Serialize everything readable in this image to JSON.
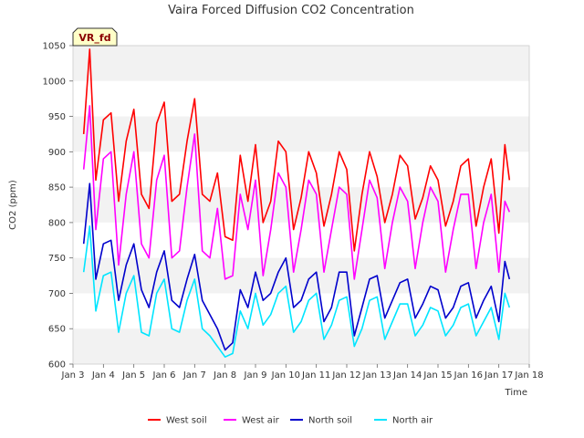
{
  "chart_data": {
    "type": "line",
    "title": "Vaira Forced Diffusion CO2 Concentration",
    "xlabel": "Time",
    "ylabel": "CO2 (ppm)",
    "badge": "VR_fd",
    "xlim": [
      3,
      18
    ],
    "ylim": [
      600,
      1050
    ],
    "x_ticks": [
      {
        "v": 3,
        "label": "Jan 3"
      },
      {
        "v": 4,
        "label": "Jan 4"
      },
      {
        "v": 5,
        "label": "Jan 5"
      },
      {
        "v": 6,
        "label": "Jan 6"
      },
      {
        "v": 7,
        "label": "Jan 7"
      },
      {
        "v": 8,
        "label": "Jan 8"
      },
      {
        "v": 9,
        "label": "Jan 9"
      },
      {
        "v": 10,
        "label": "Jan 10"
      },
      {
        "v": 11,
        "label": "Jan 11"
      },
      {
        "v": 12,
        "label": "Jan 12"
      },
      {
        "v": 13,
        "label": "Jan 13"
      },
      {
        "v": 14,
        "label": "Jan 14"
      },
      {
        "v": 15,
        "label": "Jan 15"
      },
      {
        "v": 16,
        "label": "Jan 16"
      },
      {
        "v": 17,
        "label": "Jan 17"
      },
      {
        "v": 18,
        "label": "Jan 18"
      }
    ],
    "y_ticks": [
      600,
      650,
      700,
      750,
      800,
      850,
      900,
      950,
      1000,
      1050
    ],
    "grid": "horizontal bands",
    "legend": "bottom",
    "series": [
      {
        "name": "West soil",
        "color": "#ff0000",
        "x": [
          3.35,
          3.55,
          3.75,
          4.0,
          4.25,
          4.5,
          4.75,
          5.0,
          5.25,
          5.5,
          5.75,
          6.0,
          6.25,
          6.5,
          6.75,
          7.0,
          7.25,
          7.5,
          7.75,
          8.0,
          8.25,
          8.5,
          8.75,
          9.0,
          9.25,
          9.5,
          9.75,
          10.0,
          10.25,
          10.5,
          10.75,
          11.0,
          11.25,
          11.5,
          11.75,
          12.0,
          12.25,
          12.5,
          12.75,
          13.0,
          13.25,
          13.5,
          13.75,
          14.0,
          14.25,
          14.5,
          14.75,
          15.0,
          15.25,
          15.5,
          15.75,
          16.0,
          16.25,
          16.5,
          16.75,
          17.0,
          17.2,
          17.35
        ],
        "y": [
          925,
          1045,
          860,
          945,
          955,
          830,
          915,
          960,
          840,
          820,
          940,
          970,
          830,
          840,
          915,
          975,
          840,
          830,
          870,
          780,
          775,
          895,
          830,
          910,
          800,
          830,
          915,
          900,
          790,
          835,
          900,
          870,
          795,
          840,
          900,
          875,
          760,
          840,
          900,
          865,
          800,
          840,
          895,
          880,
          805,
          835,
          880,
          860,
          795,
          830,
          880,
          890,
          795,
          850,
          890,
          785,
          910,
          860
        ]
      },
      {
        "name": "West air",
        "color": "#ff00ff",
        "x": [
          3.35,
          3.55,
          3.75,
          4.0,
          4.25,
          4.5,
          4.75,
          5.0,
          5.25,
          5.5,
          5.75,
          6.0,
          6.25,
          6.5,
          6.75,
          7.0,
          7.25,
          7.5,
          7.75,
          8.0,
          8.25,
          8.5,
          8.75,
          9.0,
          9.25,
          9.5,
          9.75,
          10.0,
          10.25,
          10.5,
          10.75,
          11.0,
          11.25,
          11.5,
          11.75,
          12.0,
          12.25,
          12.5,
          12.75,
          13.0,
          13.25,
          13.5,
          13.75,
          14.0,
          14.25,
          14.5,
          14.75,
          15.0,
          15.25,
          15.5,
          15.75,
          16.0,
          16.25,
          16.5,
          16.75,
          17.0,
          17.2,
          17.35
        ],
        "y": [
          875,
          965,
          790,
          890,
          900,
          740,
          840,
          900,
          770,
          750,
          860,
          895,
          750,
          760,
          850,
          925,
          760,
          750,
          820,
          720,
          725,
          840,
          790,
          860,
          725,
          790,
          870,
          850,
          730,
          790,
          860,
          840,
          730,
          790,
          850,
          840,
          720,
          790,
          860,
          835,
          735,
          800,
          850,
          830,
          735,
          800,
          850,
          830,
          730,
          790,
          840,
          840,
          735,
          800,
          840,
          730,
          830,
          815
        ]
      },
      {
        "name": "North soil",
        "color": "#0000cc",
        "x": [
          3.35,
          3.55,
          3.75,
          4.0,
          4.25,
          4.5,
          4.75,
          5.0,
          5.25,
          5.5,
          5.75,
          6.0,
          6.25,
          6.5,
          6.75,
          7.0,
          7.25,
          7.5,
          7.75,
          8.0,
          8.25,
          8.5,
          8.75,
          9.0,
          9.25,
          9.5,
          9.75,
          10.0,
          10.25,
          10.5,
          10.75,
          11.0,
          11.25,
          11.5,
          11.75,
          12.0,
          12.25,
          12.5,
          12.75,
          13.0,
          13.25,
          13.5,
          13.75,
          14.0,
          14.25,
          14.5,
          14.75,
          15.0,
          15.25,
          15.5,
          15.75,
          16.0,
          16.25,
          16.5,
          16.75,
          17.0,
          17.2,
          17.35
        ],
        "y": [
          770,
          855,
          720,
          770,
          775,
          690,
          740,
          770,
          705,
          680,
          730,
          760,
          690,
          680,
          720,
          755,
          690,
          670,
          650,
          620,
          630,
          705,
          680,
          730,
          690,
          700,
          730,
          750,
          680,
          690,
          720,
          730,
          660,
          680,
          730,
          730,
          640,
          680,
          720,
          725,
          665,
          690,
          715,
          720,
          665,
          685,
          710,
          705,
          665,
          680,
          710,
          715,
          665,
          690,
          710,
          660,
          745,
          720
        ]
      },
      {
        "name": "North air",
        "color": "#00e5ff",
        "x": [
          3.35,
          3.55,
          3.75,
          4.0,
          4.25,
          4.5,
          4.75,
          5.0,
          5.25,
          5.5,
          5.75,
          6.0,
          6.25,
          6.5,
          6.75,
          7.0,
          7.25,
          7.5,
          7.75,
          8.0,
          8.25,
          8.5,
          8.75,
          9.0,
          9.25,
          9.5,
          9.75,
          10.0,
          10.25,
          10.5,
          10.75,
          11.0,
          11.25,
          11.5,
          11.75,
          12.0,
          12.25,
          12.5,
          12.75,
          13.0,
          13.25,
          13.5,
          13.75,
          14.0,
          14.25,
          14.5,
          14.75,
          15.0,
          15.25,
          15.5,
          15.75,
          16.0,
          16.25,
          16.5,
          16.75,
          17.0,
          17.2,
          17.35
        ],
        "y": [
          730,
          795,
          675,
          725,
          730,
          645,
          700,
          725,
          645,
          640,
          700,
          720,
          650,
          645,
          690,
          720,
          650,
          640,
          625,
          610,
          615,
          675,
          650,
          700,
          655,
          670,
          700,
          710,
          645,
          660,
          690,
          700,
          635,
          655,
          690,
          695,
          625,
          650,
          690,
          695,
          635,
          660,
          685,
          685,
          640,
          655,
          680,
          675,
          640,
          655,
          680,
          685,
          640,
          660,
          680,
          635,
          700,
          680
        ]
      }
    ]
  }
}
